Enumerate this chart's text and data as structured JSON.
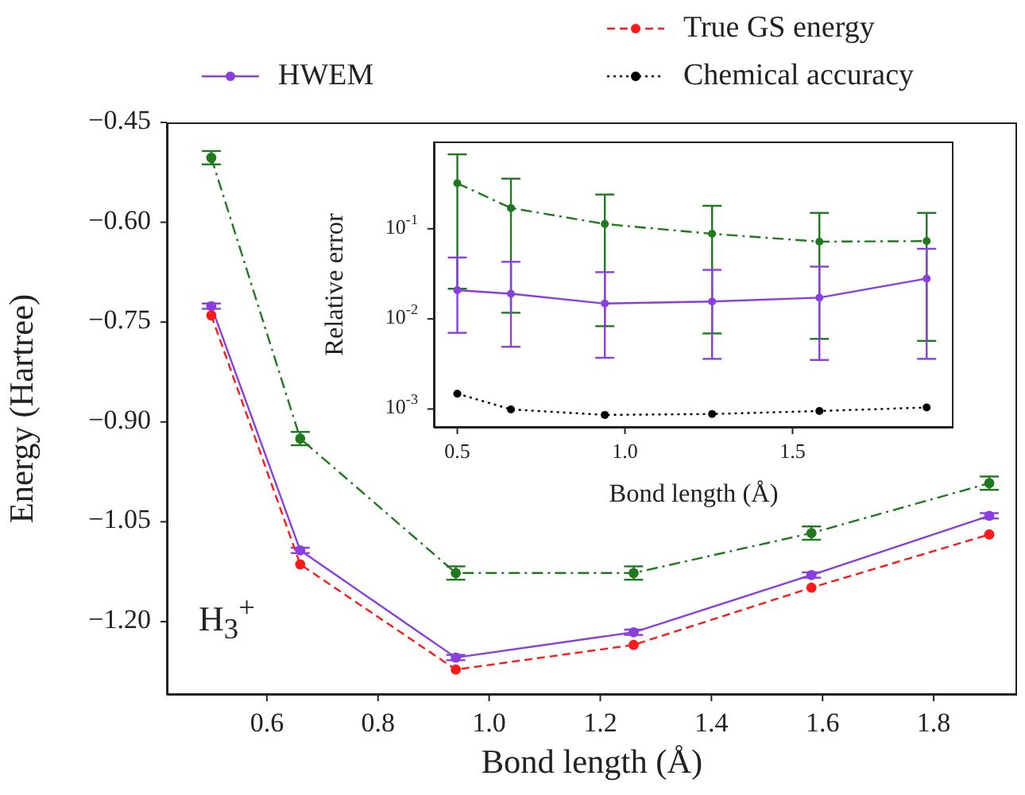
{
  "chart_data": [
    {
      "type": "line",
      "xlabel": "Bond length (Å)",
      "ylabel": "Energy (Hartree)",
      "x": [
        0.5,
        0.66,
        0.94,
        1.26,
        1.58,
        1.9
      ],
      "xlim": [
        0.42,
        1.95
      ],
      "xticks": [
        {
          "value": 0.6,
          "label": "0.6"
        },
        {
          "value": 0.8,
          "label": "0.8"
        },
        {
          "value": 1.0,
          "label": "1.0"
        },
        {
          "value": 1.2,
          "label": "1.2"
        },
        {
          "value": 1.4,
          "label": "1.4"
        },
        {
          "value": 1.6,
          "label": "1.6"
        },
        {
          "value": 1.8,
          "label": "1.8"
        }
      ],
      "ylim": [
        -1.31,
        -0.45
      ],
      "yticks": [
        {
          "value": -1.2,
          "label": "−1.20"
        },
        {
          "value": -1.05,
          "label": "−1.05"
        },
        {
          "value": -0.9,
          "label": "−0.90"
        },
        {
          "value": -0.75,
          "label": "−0.75"
        },
        {
          "value": -0.6,
          "label": "−0.60"
        },
        {
          "value": -0.45,
          "label": "−0.45"
        }
      ],
      "series": [
        {
          "color": "#1f7a1f",
          "line_style": "dashdot",
          "values": [
            -0.503,
            -0.925,
            -1.127,
            -1.127,
            -1.067,
            -0.992
          ],
          "errors": [
            0.01,
            0.01,
            0.01,
            0.01,
            0.01,
            0.01
          ]
        },
        {
          "name": "HWEM",
          "color": "#8a3ee0",
          "line_style": "solid",
          "values": [
            -0.726,
            -1.093,
            -1.254,
            -1.216,
            -1.13,
            -1.041
          ],
          "errors": [
            0.004,
            0.004,
            0.004,
            0.004,
            0.004,
            0.004
          ]
        },
        {
          "name": "True GS energy",
          "color": "#ff1a1a",
          "line_style": "dashed",
          "values": [
            -0.74,
            -1.114,
            -1.272,
            -1.235,
            -1.149,
            -1.069
          ]
        }
      ],
      "marker": "circle",
      "grid": false,
      "legend": "top",
      "annotations": [
        "H$_{3}$$^{+}$"
      ]
    },
    {
      "type": "line",
      "xlabel": "Bond length (Å)",
      "ylabel": "Relative error",
      "x": [
        0.5,
        0.66,
        0.94,
        1.26,
        1.58,
        1.9
      ],
      "log": "y",
      "xlim": [
        0.43,
        1.98
      ],
      "xticks": [
        0.5,
        {
          "value": 1.0,
          "label": "1.0"
        },
        1.5
      ],
      "ylim": [
        0.00062,
        0.93
      ],
      "yticks": [
        {
          "value": 0.001,
          "label": "10$^{-3}$"
        },
        {
          "value": 0.01,
          "label": "10$^{-2}$"
        },
        {
          "value": 0.1,
          "label": "10$^{-1}$"
        }
      ],
      "series": [
        {
          "color": "#1f7a1f",
          "line_style": "dashdot",
          "values": [
            0.32,
            0.17,
            0.113,
            0.088,
            0.072,
            0.073
          ],
          "errors": [
            [
              0.0216,
              0.67
            ],
            [
              0.0117,
              0.36
            ],
            [
              0.0083,
              0.24
            ],
            [
              0.0069,
              0.18
            ],
            [
              0.006,
              0.15
            ],
            [
              0.0057,
              0.15
            ]
          ]
        },
        {
          "color": "#8a3ee0",
          "line_style": "solid",
          "values": [
            0.0208,
            0.019,
            0.0148,
            0.0156,
            0.0172,
            0.028
          ],
          "errors": [
            [
              0.007,
              0.048
            ],
            [
              0.0049,
              0.043
            ],
            [
              0.0037,
              0.033
            ],
            [
              0.0036,
              0.035
            ],
            [
              0.0035,
              0.038
            ],
            [
              0.0036,
              0.06
            ]
          ]
        },
        {
          "name": "Chemical accuracy",
          "color": "#000000",
          "line_style": "dotted",
          "values": [
            0.00148,
            0.00099,
            0.00086,
            0.00088,
            0.00095,
            0.00104
          ]
        }
      ],
      "marker": "circle",
      "grid": false
    }
  ]
}
